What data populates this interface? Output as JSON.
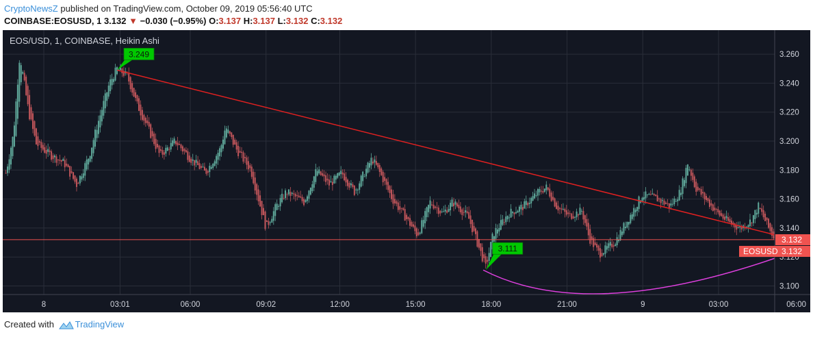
{
  "header": {
    "brand": "CryptoNewsZ",
    "published_text": "published on TradingView.com, October 09, 2019 05:56:40 UTC",
    "symbol_line": "COINBASE:EOSUSD, 1",
    "price": "3.132",
    "change": "−0.030 (−0.95%)",
    "o_label": "O:",
    "o_val": "3.137",
    "h_label": "H:",
    "h_val": "3.137",
    "l_label": "L:",
    "l_val": "3.132",
    "c_label": "C:",
    "c_val": "3.132"
  },
  "footer": {
    "created_with": "Created with",
    "tradingview": "TradingView"
  },
  "chart_data": {
    "type": "candlestick",
    "title": "EOS/USD, 1, COINBASE, Heikin Ashi",
    "x_tick_labels": [
      "8",
      "03:01",
      "06:00",
      "09:02",
      "12:00",
      "15:00",
      "18:00",
      "21:00",
      "9",
      "03:00",
      "06:00"
    ],
    "y_ticks": [
      3.1,
      3.12,
      3.14,
      3.16,
      3.18,
      3.2,
      3.22,
      3.24,
      3.26
    ],
    "y_tick_labels": [
      "3.100",
      "3.120",
      "3.140",
      "3.160",
      "3.180",
      "3.200",
      "3.220",
      "3.240",
      "3.260"
    ],
    "ylim": [
      3.094,
      3.276
    ],
    "xlim_hours": [
      -1.5,
      32.4
    ],
    "current_price": 3.132,
    "current_price_label": "3.132",
    "symbol_tag": "EOSUSD",
    "symbol_tag_price": "3.132",
    "price_path": [
      [
        -1.5,
        3.178
      ],
      [
        -1.2,
        3.205
      ],
      [
        -0.95,
        3.26
      ],
      [
        -0.6,
        3.22
      ],
      [
        -0.3,
        3.198
      ],
      [
        0.3,
        3.19
      ],
      [
        0.8,
        3.185
      ],
      [
        1.3,
        3.17
      ],
      [
        1.8,
        3.19
      ],
      [
        2.1,
        3.21
      ],
      [
        2.6,
        3.24
      ],
      [
        2.9,
        3.25
      ],
      [
        3.3,
        3.245
      ],
      [
        3.7,
        3.225
      ],
      [
        4.1,
        3.21
      ],
      [
        4.6,
        3.19
      ],
      [
        5.2,
        3.2
      ],
      [
        5.8,
        3.188
      ],
      [
        6.4,
        3.178
      ],
      [
        7.0,
        3.195
      ],
      [
        7.2,
        3.21
      ],
      [
        7.6,
        3.195
      ],
      [
        8.2,
        3.18
      ],
      [
        8.5,
        3.16
      ],
      [
        8.8,
        3.14
      ],
      [
        9.2,
        3.155
      ],
      [
        9.6,
        3.165
      ],
      [
        10.3,
        3.158
      ],
      [
        10.8,
        3.18
      ],
      [
        11.3,
        3.17
      ],
      [
        11.8,
        3.178
      ],
      [
        12.3,
        3.165
      ],
      [
        12.6,
        3.175
      ],
      [
        13.0,
        3.188
      ],
      [
        13.4,
        3.175
      ],
      [
        13.8,
        3.16
      ],
      [
        14.3,
        3.148
      ],
      [
        14.8,
        3.135
      ],
      [
        15.3,
        3.158
      ],
      [
        15.8,
        3.15
      ],
      [
        16.2,
        3.158
      ],
      [
        16.8,
        3.148
      ],
      [
        17.2,
        3.128
      ],
      [
        17.5,
        3.113
      ],
      [
        17.8,
        3.136
      ],
      [
        18.4,
        3.15
      ],
      [
        19.0,
        3.155
      ],
      [
        19.6,
        3.165
      ],
      [
        19.9,
        3.168
      ],
      [
        20.3,
        3.155
      ],
      [
        20.8,
        3.148
      ],
      [
        21.3,
        3.152
      ],
      [
        21.6,
        3.133
      ],
      [
        22.0,
        3.122
      ],
      [
        22.6,
        3.13
      ],
      [
        23.2,
        3.148
      ],
      [
        23.7,
        3.163
      ],
      [
        24.3,
        3.16
      ],
      [
        24.8,
        3.155
      ],
      [
        25.2,
        3.165
      ],
      [
        25.5,
        3.185
      ],
      [
        25.8,
        3.168
      ],
      [
        26.2,
        3.16
      ],
      [
        26.7,
        3.15
      ],
      [
        27.2,
        3.143
      ],
      [
        27.6,
        3.14
      ],
      [
        28.0,
        3.145
      ],
      [
        28.3,
        3.155
      ],
      [
        28.7,
        3.14
      ],
      [
        29.1,
        3.128
      ],
      [
        29.5,
        3.122
      ],
      [
        29.9,
        3.125
      ],
      [
        30.2,
        3.128
      ],
      [
        30.6,
        3.14
      ],
      [
        31.0,
        3.138
      ],
      [
        31.4,
        3.132
      ],
      [
        31.6,
        3.133
      ]
    ],
    "annotations": [
      {
        "label": "3.249",
        "x_hours": 2.9,
        "price": 3.249,
        "color": "#00c800"
      },
      {
        "label": "3.111",
        "x_hours": 17.5,
        "price": 3.111,
        "color": "#00c800"
      }
    ],
    "trendline": {
      "color": "#e02020",
      "from": [
        2.9,
        3.249
      ],
      "to": [
        30.4,
        3.129
      ]
    },
    "curve": {
      "color": "#e040e0",
      "from": [
        17.4,
        3.111
      ],
      "bottom": [
        23.3,
        3.096
      ],
      "to": [
        31.5,
        3.136
      ]
    },
    "colors": {
      "background": "#131722",
      "grid": "#2a2e39",
      "up": "#5fa89a",
      "down": "#c0555a",
      "axis_text": "#d1d4dc",
      "price_label_bg": "#ef5350",
      "title_text": "#d1d4dc"
    }
  }
}
